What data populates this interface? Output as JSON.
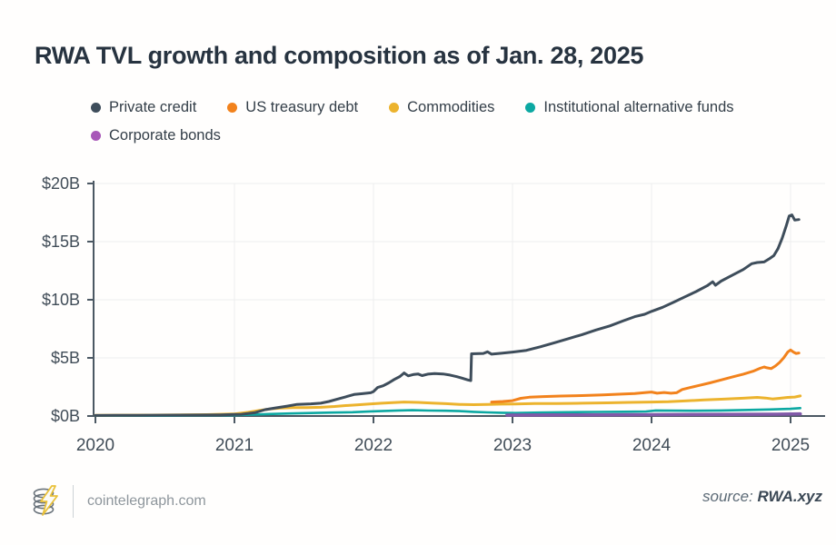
{
  "title": "RWA TVL growth and composition as of Jan. 28, 2025",
  "legend": [
    {
      "label": "Private credit",
      "color": "#3e4d5b"
    },
    {
      "label": "US treasury debt",
      "color": "#f2821c"
    },
    {
      "label": "Commodities",
      "color": "#ecb32d"
    },
    {
      "label": "Institutional alternative funds",
      "color": "#0ca8a2"
    },
    {
      "label": "Corporate bonds",
      "color": "#a857b8"
    }
  ],
  "footer": {
    "brand": "cointelegraph.com",
    "logo_icon": "cointelegraph-coins-lightning",
    "source_label": "source:",
    "source_value": "RWA.xyz"
  },
  "chart_data": {
    "type": "line",
    "title": "RWA TVL growth and composition as of Jan. 28, 2025",
    "xlabel": "",
    "ylabel": "",
    "grid": true,
    "legend_position": "top",
    "xlim": [
      2020,
      2025.25
    ],
    "ylim": [
      0,
      20
    ],
    "x_ticks": [
      "2020",
      "2021",
      "2022",
      "2023",
      "2024",
      "2025"
    ],
    "x_tick_years": [
      2020,
      2021,
      2022,
      2023,
      2024,
      2025
    ],
    "y_ticks": [
      "$0B",
      "$5B",
      "$10B",
      "$15B",
      "$20B"
    ],
    "y_tick_values": [
      0,
      5,
      10,
      15,
      20
    ],
    "axis_color": "#4b5863",
    "grid_color": "#eeeeee",
    "series": [
      {
        "name": "Institutional alternative funds",
        "color": "#0ca8a2",
        "width": 2.6,
        "points": [
          [
            2020.0,
            0.02
          ],
          [
            2020.5,
            0.03
          ],
          [
            2021.0,
            0.07
          ],
          [
            2021.12,
            0.12
          ],
          [
            2021.25,
            0.17
          ],
          [
            2021.4,
            0.22
          ],
          [
            2021.55,
            0.26
          ],
          [
            2021.7,
            0.3
          ],
          [
            2021.85,
            0.33
          ],
          [
            2021.98,
            0.4
          ],
          [
            2022.08,
            0.44
          ],
          [
            2022.18,
            0.48
          ],
          [
            2022.28,
            0.5
          ],
          [
            2022.4,
            0.47
          ],
          [
            2022.52,
            0.45
          ],
          [
            2022.62,
            0.42
          ],
          [
            2022.72,
            0.36
          ],
          [
            2022.82,
            0.31
          ],
          [
            2022.92,
            0.28
          ],
          [
            2023.02,
            0.26
          ],
          [
            2023.2,
            0.3
          ],
          [
            2023.4,
            0.33
          ],
          [
            2023.6,
            0.35
          ],
          [
            2023.8,
            0.37
          ],
          [
            2023.96,
            0.39
          ],
          [
            2024.03,
            0.48
          ],
          [
            2024.15,
            0.46
          ],
          [
            2024.3,
            0.45
          ],
          [
            2024.5,
            0.48
          ],
          [
            2024.7,
            0.52
          ],
          [
            2024.85,
            0.56
          ],
          [
            2025.0,
            0.62
          ],
          [
            2025.07,
            0.68
          ]
        ]
      },
      {
        "name": "Corporate bonds",
        "color": "#8159a8",
        "width": 3.6,
        "points": [
          [
            2022.96,
            0.08
          ],
          [
            2023.3,
            0.09
          ],
          [
            2023.7,
            0.1
          ],
          [
            2024.0,
            0.12
          ],
          [
            2024.3,
            0.13
          ],
          [
            2024.6,
            0.14
          ],
          [
            2024.9,
            0.16
          ],
          [
            2025.07,
            0.18
          ]
        ]
      },
      {
        "name": "Commodities",
        "color": "#ecb32d",
        "width": 3,
        "points": [
          [
            2020.0,
            0.06
          ],
          [
            2020.4,
            0.08
          ],
          [
            2020.8,
            0.12
          ],
          [
            2021.0,
            0.18
          ],
          [
            2021.1,
            0.32
          ],
          [
            2021.18,
            0.48
          ],
          [
            2021.26,
            0.62
          ],
          [
            2021.33,
            0.68
          ],
          [
            2021.42,
            0.72
          ],
          [
            2021.52,
            0.72
          ],
          [
            2021.62,
            0.75
          ],
          [
            2021.72,
            0.82
          ],
          [
            2021.8,
            0.9
          ],
          [
            2021.88,
            0.95
          ],
          [
            2021.96,
            1.02
          ],
          [
            2022.06,
            1.1
          ],
          [
            2022.14,
            1.15
          ],
          [
            2022.22,
            1.2
          ],
          [
            2022.32,
            1.17
          ],
          [
            2022.42,
            1.12
          ],
          [
            2022.52,
            1.06
          ],
          [
            2022.62,
            1.0
          ],
          [
            2022.72,
            0.98
          ],
          [
            2022.82,
            1.0
          ],
          [
            2022.92,
            1.02
          ],
          [
            2023.02,
            1.03
          ],
          [
            2023.16,
            1.07
          ],
          [
            2023.32,
            1.08
          ],
          [
            2023.5,
            1.1
          ],
          [
            2023.68,
            1.13
          ],
          [
            2023.84,
            1.17
          ],
          [
            2024.0,
            1.2
          ],
          [
            2024.12,
            1.23
          ],
          [
            2024.24,
            1.3
          ],
          [
            2024.38,
            1.38
          ],
          [
            2024.52,
            1.45
          ],
          [
            2024.66,
            1.53
          ],
          [
            2024.76,
            1.6
          ],
          [
            2024.82,
            1.55
          ],
          [
            2024.87,
            1.47
          ],
          [
            2024.92,
            1.52
          ],
          [
            2024.98,
            1.6
          ],
          [
            2025.03,
            1.63
          ],
          [
            2025.07,
            1.73
          ]
        ]
      },
      {
        "name": "US treasury debt",
        "color": "#f2821c",
        "width": 3,
        "points": [
          [
            2022.85,
            1.2
          ],
          [
            2022.93,
            1.25
          ],
          [
            2023.0,
            1.32
          ],
          [
            2023.06,
            1.52
          ],
          [
            2023.12,
            1.62
          ],
          [
            2023.22,
            1.67
          ],
          [
            2023.35,
            1.72
          ],
          [
            2023.5,
            1.76
          ],
          [
            2023.65,
            1.82
          ],
          [
            2023.78,
            1.88
          ],
          [
            2023.88,
            1.93
          ],
          [
            2023.96,
            2.02
          ],
          [
            2024.0,
            2.06
          ],
          [
            2024.04,
            1.96
          ],
          [
            2024.09,
            2.02
          ],
          [
            2024.14,
            1.96
          ],
          [
            2024.18,
            2.0
          ],
          [
            2024.22,
            2.28
          ],
          [
            2024.28,
            2.45
          ],
          [
            2024.35,
            2.65
          ],
          [
            2024.42,
            2.85
          ],
          [
            2024.5,
            3.1
          ],
          [
            2024.58,
            3.35
          ],
          [
            2024.66,
            3.6
          ],
          [
            2024.73,
            3.85
          ],
          [
            2024.78,
            4.1
          ],
          [
            2024.81,
            4.22
          ],
          [
            2024.83,
            4.15
          ],
          [
            2024.86,
            4.08
          ],
          [
            2024.89,
            4.3
          ],
          [
            2024.92,
            4.6
          ],
          [
            2024.95,
            5.0
          ],
          [
            2024.98,
            5.5
          ],
          [
            2025.0,
            5.68
          ],
          [
            2025.02,
            5.5
          ],
          [
            2025.04,
            5.38
          ],
          [
            2025.06,
            5.42
          ]
        ]
      },
      {
        "name": "Private credit",
        "color": "#3e4d5b",
        "width": 3,
        "points": [
          [
            2020.0,
            0.05
          ],
          [
            2020.3,
            0.06
          ],
          [
            2020.6,
            0.08
          ],
          [
            2020.9,
            0.1
          ],
          [
            2021.05,
            0.15
          ],
          [
            2021.15,
            0.3
          ],
          [
            2021.22,
            0.55
          ],
          [
            2021.3,
            0.7
          ],
          [
            2021.38,
            0.85
          ],
          [
            2021.45,
            1.0
          ],
          [
            2021.55,
            1.05
          ],
          [
            2021.62,
            1.1
          ],
          [
            2021.68,
            1.25
          ],
          [
            2021.74,
            1.45
          ],
          [
            2021.8,
            1.65
          ],
          [
            2021.86,
            1.85
          ],
          [
            2021.92,
            1.92
          ],
          [
            2021.98,
            2.0
          ],
          [
            2022.0,
            2.1
          ],
          [
            2022.03,
            2.45
          ],
          [
            2022.07,
            2.6
          ],
          [
            2022.11,
            2.85
          ],
          [
            2022.15,
            3.15
          ],
          [
            2022.19,
            3.4
          ],
          [
            2022.22,
            3.7
          ],
          [
            2022.25,
            3.45
          ],
          [
            2022.29,
            3.58
          ],
          [
            2022.32,
            3.62
          ],
          [
            2022.35,
            3.48
          ],
          [
            2022.39,
            3.6
          ],
          [
            2022.44,
            3.66
          ],
          [
            2022.5,
            3.62
          ],
          [
            2022.55,
            3.52
          ],
          [
            2022.6,
            3.38
          ],
          [
            2022.64,
            3.25
          ],
          [
            2022.68,
            3.1
          ],
          [
            2022.7,
            3.05
          ],
          [
            2022.705,
            5.35
          ],
          [
            2022.79,
            5.38
          ],
          [
            2022.82,
            5.52
          ],
          [
            2022.85,
            5.32
          ],
          [
            2022.92,
            5.4
          ],
          [
            2023.0,
            5.5
          ],
          [
            2023.1,
            5.65
          ],
          [
            2023.2,
            5.95
          ],
          [
            2023.3,
            6.3
          ],
          [
            2023.4,
            6.65
          ],
          [
            2023.5,
            7.0
          ],
          [
            2023.6,
            7.4
          ],
          [
            2023.7,
            7.75
          ],
          [
            2023.8,
            8.2
          ],
          [
            2023.88,
            8.55
          ],
          [
            2023.95,
            8.75
          ],
          [
            2024.0,
            9.0
          ],
          [
            2024.08,
            9.35
          ],
          [
            2024.16,
            9.8
          ],
          [
            2024.24,
            10.25
          ],
          [
            2024.32,
            10.7
          ],
          [
            2024.4,
            11.2
          ],
          [
            2024.44,
            11.55
          ],
          [
            2024.46,
            11.25
          ],
          [
            2024.5,
            11.6
          ],
          [
            2024.58,
            12.1
          ],
          [
            2024.66,
            12.6
          ],
          [
            2024.72,
            13.1
          ],
          [
            2024.76,
            13.2
          ],
          [
            2024.81,
            13.25
          ],
          [
            2024.85,
            13.55
          ],
          [
            2024.88,
            13.8
          ],
          [
            2024.91,
            14.4
          ],
          [
            2024.94,
            15.3
          ],
          [
            2024.97,
            16.4
          ],
          [
            2024.99,
            17.2
          ],
          [
            2025.01,
            17.3
          ],
          [
            2025.03,
            16.85
          ],
          [
            2025.06,
            16.9
          ]
        ]
      }
    ]
  }
}
